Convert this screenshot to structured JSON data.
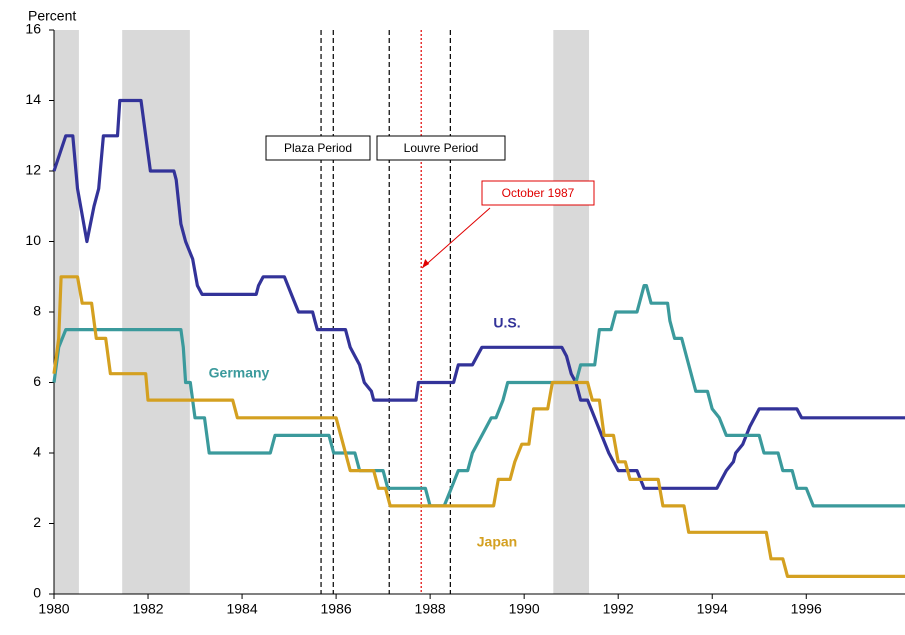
{
  "chart_data": {
    "type": "line",
    "y_label": "Percent",
    "xlim": [
      1980,
      1998.1
    ],
    "ylim": [
      0,
      16
    ],
    "xticks": [
      1980,
      1982,
      1984,
      1986,
      1988,
      1990,
      1992,
      1994,
      1996
    ],
    "yticks": [
      0,
      2,
      4,
      6,
      8,
      10,
      12,
      14,
      16
    ],
    "shaded_periods": [
      [
        1980.0,
        1980.53
      ],
      [
        1981.45,
        1982.89
      ],
      [
        1990.62,
        1991.38
      ]
    ],
    "shade_color": "#d9d9d9",
    "vertical_lines": [
      {
        "x": 1985.68,
        "color": "#000000",
        "style": "dashed"
      },
      {
        "x": 1985.94,
        "color": "#000000",
        "style": "dashed"
      },
      {
        "x": 1987.13,
        "color": "#000000",
        "style": "dashed"
      },
      {
        "x": 1988.43,
        "color": "#000000",
        "style": "dashed"
      },
      {
        "x": 1987.81,
        "color": "#e00000",
        "style": "dotted"
      }
    ],
    "annotations": [
      {
        "text": "Plaza Period",
        "color": "#000000"
      },
      {
        "text": "Louvre Period",
        "color": "#000000"
      },
      {
        "text": "October 1987",
        "color": "#e00000"
      }
    ],
    "series": [
      {
        "name": "U.S.",
        "color": "#333399",
        "x": [
          1980.0,
          1980.25,
          1980.4,
          1980.5,
          1980.7,
          1980.85,
          1980.95,
          1981.05,
          1981.35,
          1981.4,
          1981.85,
          1981.95,
          1982.05,
          1982.55,
          1982.6,
          1982.7,
          1982.8,
          1982.95,
          1983.05,
          1983.15,
          1984.3,
          1984.35,
          1984.45,
          1984.9,
          1985.05,
          1985.2,
          1985.5,
          1985.55,
          1985.6,
          1986.2,
          1986.3,
          1986.4,
          1986.5,
          1986.6,
          1986.75,
          1986.8,
          1987.7,
          1987.75,
          1988.5,
          1988.6,
          1988.9,
          1989.0,
          1989.1,
          1990.8,
          1990.9,
          1991.0,
          1991.1,
          1991.2,
          1991.35,
          1991.5,
          1991.65,
          1991.8,
          1992.0,
          1992.4,
          1992.55,
          1994.1,
          1994.2,
          1994.3,
          1994.45,
          1994.5,
          1994.65,
          1994.8,
          1995.0,
          1995.8,
          1995.9,
          1998.1
        ],
        "values": [
          12,
          13,
          13,
          11.5,
          10,
          11,
          11.5,
          13,
          13,
          14,
          14,
          13,
          12,
          12,
          11.75,
          10.5,
          10,
          9.5,
          8.75,
          8.5,
          8.5,
          8.75,
          9,
          9,
          8.5,
          8,
          8,
          7.75,
          7.5,
          7.5,
          7,
          6.75,
          6.5,
          6,
          5.75,
          5.5,
          5.5,
          6,
          6,
          6.5,
          6.5,
          6.75,
          7,
          7,
          6.75,
          6.25,
          6,
          5.5,
          5.5,
          5,
          4.5,
          4,
          3.5,
          3.5,
          3,
          3,
          3.25,
          3.5,
          3.75,
          4,
          4.25,
          4.75,
          5.25,
          5.25,
          5,
          5
        ]
      },
      {
        "name": "Germany",
        "color": "#3b9a9c",
        "x": [
          1980.0,
          1980.1,
          1980.25,
          1982.7,
          1982.75,
          1982.8,
          1982.9,
          1983.0,
          1983.2,
          1983.3,
          1984.6,
          1984.7,
          1985.85,
          1985.95,
          1986.4,
          1986.5,
          1987.0,
          1987.1,
          1987.9,
          1988.0,
          1988.3,
          1988.45,
          1988.6,
          1988.8,
          1988.9,
          1989.1,
          1989.3,
          1989.4,
          1989.55,
          1989.65,
          1991.1,
          1991.2,
          1991.5,
          1991.6,
          1991.85,
          1991.95,
          1992.4,
          1992.55,
          1992.6,
          1992.7,
          1993.05,
          1993.1,
          1993.2,
          1993.35,
          1993.45,
          1993.55,
          1993.65,
          1993.9,
          1994.0,
          1994.15,
          1994.3,
          1995.0,
          1995.1,
          1995.4,
          1995.5,
          1995.7,
          1995.8,
          1996.0,
          1996.15,
          1998.1
        ],
        "values": [
          6,
          7,
          7.5,
          7.5,
          7,
          6,
          6,
          5,
          5,
          4,
          4,
          4.5,
          4.5,
          4,
          4,
          3.5,
          3.5,
          3,
          3,
          2.5,
          2.5,
          3,
          3.5,
          3.5,
          4,
          4.5,
          5,
          5,
          5.5,
          6,
          6,
          6.5,
          6.5,
          7.5,
          7.5,
          8,
          8,
          8.75,
          8.75,
          8.25,
          8.25,
          7.75,
          7.25,
          7.25,
          6.75,
          6.25,
          5.75,
          5.75,
          5.25,
          5,
          4.5,
          4.5,
          4,
          4,
          3.5,
          3.5,
          3,
          3,
          2.5,
          2.5
        ]
      },
      {
        "name": "Japan",
        "color": "#d4a020",
        "x": [
          1980.0,
          1980.1,
          1980.15,
          1980.5,
          1980.6,
          1980.8,
          1980.9,
          1981.1,
          1981.2,
          1981.95,
          1982.0,
          1983.8,
          1983.9,
          1986.0,
          1986.1,
          1986.2,
          1986.3,
          1986.8,
          1986.9,
          1987.05,
          1987.15,
          1989.35,
          1989.45,
          1989.7,
          1989.8,
          1989.95,
          1990.1,
          1990.2,
          1990.5,
          1990.6,
          1991.35,
          1991.45,
          1991.6,
          1991.7,
          1991.9,
          1992.0,
          1992.15,
          1992.25,
          1992.85,
          1992.95,
          1993.4,
          1993.5,
          1995.15,
          1995.25,
          1995.5,
          1995.6,
          1998.1
        ],
        "values": [
          6.25,
          7.25,
          9,
          9,
          8.25,
          8.25,
          7.25,
          7.25,
          6.25,
          6.25,
          5.5,
          5.5,
          5,
          5,
          4.5,
          4,
          3.5,
          3.5,
          3,
          3,
          2.5,
          2.5,
          3.25,
          3.25,
          3.75,
          4.25,
          4.25,
          5.25,
          5.25,
          6,
          6,
          5.5,
          5.5,
          4.5,
          4.5,
          3.75,
          3.75,
          3.25,
          3.25,
          2.5,
          2.5,
          1.75,
          1.75,
          1,
          1,
          0.5,
          0.5
        ]
      }
    ]
  }
}
